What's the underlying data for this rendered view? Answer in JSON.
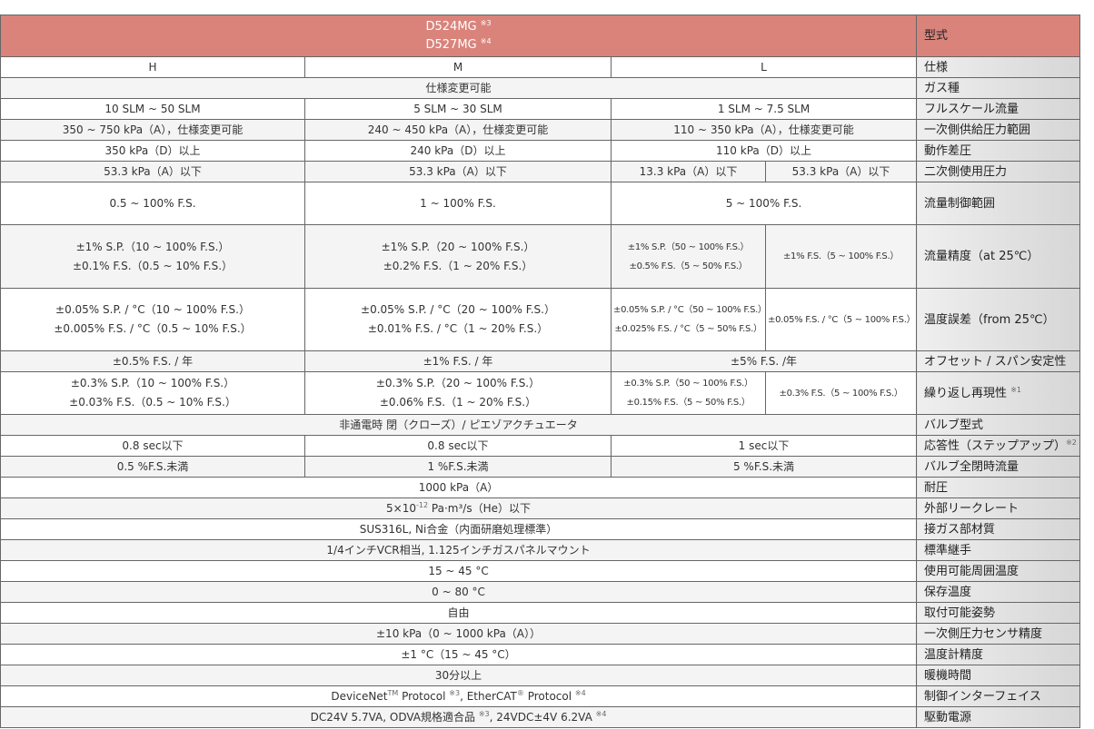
{
  "table": {
    "rows": [
      {
        "label": "型式",
        "cells": [
          [
            [
              "D524MG ",
              "※3"
            ],
            [
              "D527MG ",
              "※4"
            ]
          ]
        ]
      },
      {
        "label": "仕様",
        "cells": [
          [
            "H"
          ],
          [
            "M"
          ],
          [
            "L"
          ]
        ]
      },
      {
        "label": "ガス種",
        "cells": [
          [
            "仕様変更可能"
          ]
        ]
      },
      {
        "label": "フルスケール流量",
        "cells": [
          [
            "10 SLM ~ 50 SLM"
          ],
          [
            "5 SLM ~ 30 SLM"
          ],
          [
            "1 SLM ~ 7.5 SLM"
          ]
        ]
      },
      {
        "label": "一次側供給圧力範囲",
        "cells": [
          [
            "350 ~ 750 kPa（A），仕様変更可能"
          ],
          [
            "240 ~ 450 kPa（A），仕様変更可能"
          ],
          [
            "110 ~ 350 kPa（A），仕様変更可能"
          ]
        ]
      },
      {
        "label": "動作差圧",
        "cells": [
          [
            "350 kPa（D）以上"
          ],
          [
            "240 kPa（D）以上"
          ],
          [
            "110 kPa（D）以上"
          ]
        ]
      },
      {
        "label": "二次側使用圧力",
        "cells": [
          [
            "53.3 kPa（A）以下"
          ],
          [
            "53.3 kPa（A）以下"
          ],
          [
            "13.3 kPa（A）以下"
          ],
          [
            "53.3 kPa（A）以下"
          ]
        ]
      },
      {
        "label": "流量制御範囲",
        "cells": [
          [
            "0.5 ~ 100% F.S."
          ],
          [
            "1 ~ 100% F.S."
          ],
          [
            "5 ~ 100% F.S."
          ]
        ]
      },
      {
        "label": "流量精度（at 25℃）",
        "cells": [
          [
            "±1% S.P.（10 ~ 100% F.S.）",
            "±0.1% F.S.（0.5 ~ 10% F.S.）"
          ],
          [
            "±1% S.P.（20 ~ 100% F.S.）",
            "±0.2% F.S.（1 ~ 20% F.S.）"
          ],
          [
            "±1% S.P.（50 ~ 100% F.S.）",
            "±0.5% F.S.（5 ~ 50% F.S.）"
          ],
          [
            "±1% F.S.（5 ~ 100% F.S.）"
          ]
        ]
      },
      {
        "label": "温度誤差（from 25℃）",
        "cells": [
          [
            "±0.05% S.P. / °C（10 ~ 100% F.S.）",
            "±0.005% F.S. / °C（0.5 ~ 10% F.S.）"
          ],
          [
            "±0.05% S.P. / °C（20 ~ 100% F.S.）",
            "±0.01% F.S. / °C（1 ~ 20% F.S.）"
          ],
          [
            "±0.05% S.P. / °C（50 ~ 100% F.S.）",
            "±0.025% F.S. / °C（5 ~ 50% F.S.）"
          ],
          [
            "±0.05% F.S. / °C（5 ~ 100% F.S.）"
          ]
        ]
      },
      {
        "label": "オフセット / スパン安定性",
        "cells": [
          [
            "±0.5% F.S. / 年"
          ],
          [
            "±1% F.S. / 年"
          ],
          [
            "±5% F.S. /年"
          ]
        ]
      },
      {
        "label": [
          "繰り返し再現性 ",
          "※1"
        ],
        "cells": [
          [
            "±0.3% S.P.（10 ~ 100% F.S.）",
            "±0.03% F.S.（0.5 ~ 10% F.S.）"
          ],
          [
            "±0.3% S.P.（20 ~ 100% F.S.）",
            "±0.06% F.S.（1 ~ 20% F.S.）"
          ],
          [
            "±0.3% S.P.（50 ~ 100% F.S.）",
            "±0.15% F.S.（5 ~ 50% F.S.）"
          ],
          [
            "±0.3% F.S.（5 ~ 100% F.S.）"
          ]
        ]
      },
      {
        "label": "バルブ型式",
        "cells": [
          [
            "非通電時 閉（クローズ）/ ピエゾアクチュエータ"
          ]
        ]
      },
      {
        "label": [
          "応答性（ステップアップ）",
          "※2"
        ],
        "cells": [
          [
            "0.8 sec以下"
          ],
          [
            "0.8 sec以下"
          ],
          [
            "1 sec以下"
          ]
        ]
      },
      {
        "label": "バルブ全閉時流量",
        "cells": [
          [
            "0.5 %F.S.未満"
          ],
          [
            "1 %F.S.未満"
          ],
          [
            "5 %F.S.未満"
          ]
        ]
      },
      {
        "label": "耐圧",
        "cells": [
          [
            "1000 kPa（A）"
          ]
        ]
      },
      {
        "label": "外部リークレート",
        "cells": [
          [
            [
              "5×10",
              "-12",
              " Pa·m³/s（He）以下"
            ]
          ]
        ]
      },
      {
        "label": "接ガス部材質",
        "cells": [
          [
            "SUS316L, Ni合金（内面研磨処理標準）"
          ]
        ]
      },
      {
        "label": "標準継手",
        "cells": [
          [
            "1/4インチVCR相当, 1.125インチガスパネルマウント"
          ]
        ]
      },
      {
        "label": "使用可能周囲温度",
        "cells": [
          [
            "15 ~ 45 °C"
          ]
        ]
      },
      {
        "label": "保存温度",
        "cells": [
          [
            "0 ~ 80 °C"
          ]
        ]
      },
      {
        "label": "取付可能姿勢",
        "cells": [
          [
            "自由"
          ]
        ]
      },
      {
        "label": "一次側圧力センサ精度",
        "cells": [
          [
            "±10 kPa（0 ~ 1000 kPa（A））"
          ]
        ]
      },
      {
        "label": "温度計精度",
        "cells": [
          [
            "±1 °C（15 ~ 45 °C）"
          ]
        ]
      },
      {
        "label": "暖機時間",
        "cells": [
          [
            "30分以上"
          ]
        ]
      },
      {
        "label": "制御インターフェイス",
        "cells": [
          [
            [
              "DeviceNet",
              "TM",
              " Protocol ",
              "※3",
              ", EtherCAT",
              "®",
              " Protocol ",
              "※4"
            ]
          ]
        ]
      },
      {
        "label": "駆動電源",
        "cells": [
          [
            [
              "DC24V 5.7VA, ODVA規格適合品 ",
              "※3",
              ", 24VDC±4V 6.2VA ",
              "※4"
            ]
          ]
        ]
      }
    ]
  }
}
